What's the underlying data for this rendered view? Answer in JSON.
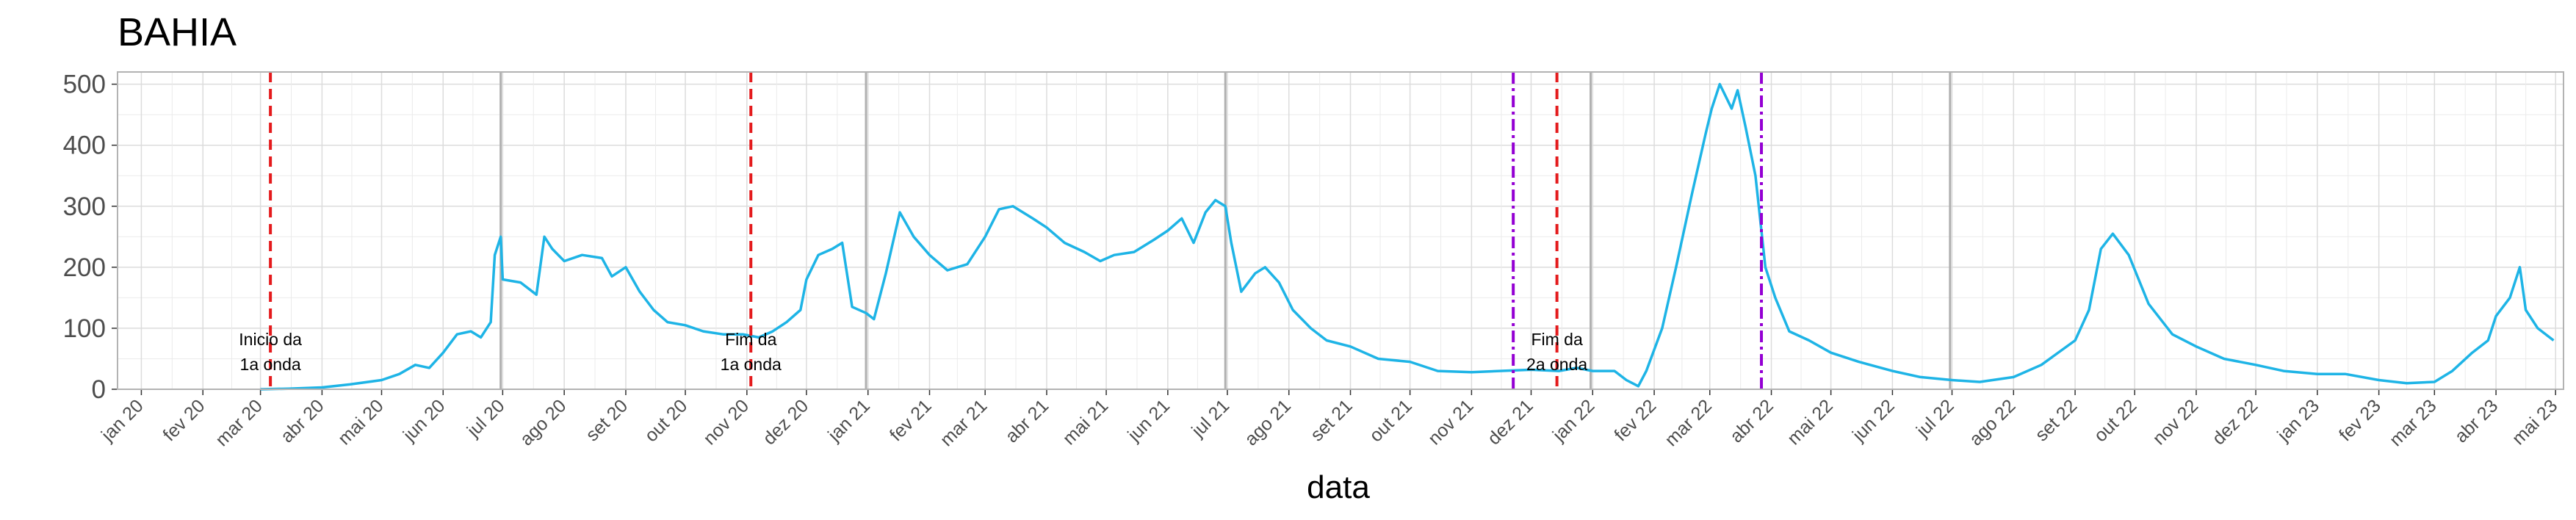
{
  "chart_data": {
    "type": "line",
    "title": "BAHIA",
    "xlabel": "data",
    "ylabel": "",
    "ylim": [
      0,
      520
    ],
    "yticks": [
      0,
      100,
      200,
      300,
      400,
      500
    ],
    "xlim": [
      "2019-12-20",
      "2023-05-05"
    ],
    "xticks": [
      {
        "date": "2020-01-01",
        "label": "jan 20"
      },
      {
        "date": "2020-02-01",
        "label": "fev 20"
      },
      {
        "date": "2020-03-01",
        "label": "mar 20"
      },
      {
        "date": "2020-04-01",
        "label": "abr 20"
      },
      {
        "date": "2020-05-01",
        "label": "mai 20"
      },
      {
        "date": "2020-06-01",
        "label": "jun 20"
      },
      {
        "date": "2020-07-01",
        "label": "jul 20"
      },
      {
        "date": "2020-08-01",
        "label": "ago 20"
      },
      {
        "date": "2020-09-01",
        "label": "set 20"
      },
      {
        "date": "2020-10-01",
        "label": "out 20"
      },
      {
        "date": "2020-11-01",
        "label": "nov 20"
      },
      {
        "date": "2020-12-01",
        "label": "dez 20"
      },
      {
        "date": "2021-01-01",
        "label": "jan 21"
      },
      {
        "date": "2021-02-01",
        "label": "fev 21"
      },
      {
        "date": "2021-03-01",
        "label": "mar 21"
      },
      {
        "date": "2021-04-01",
        "label": "abr 21"
      },
      {
        "date": "2021-05-01",
        "label": "mai 21"
      },
      {
        "date": "2021-06-01",
        "label": "jun 21"
      },
      {
        "date": "2021-07-01",
        "label": "jul 21"
      },
      {
        "date": "2021-08-01",
        "label": "ago 21"
      },
      {
        "date": "2021-09-01",
        "label": "set 21"
      },
      {
        "date": "2021-10-01",
        "label": "out 21"
      },
      {
        "date": "2021-11-01",
        "label": "nov 21"
      },
      {
        "date": "2021-12-01",
        "label": "dez 21"
      },
      {
        "date": "2022-01-01",
        "label": "jan 22"
      },
      {
        "date": "2022-02-01",
        "label": "fev 22"
      },
      {
        "date": "2022-03-01",
        "label": "mar 22"
      },
      {
        "date": "2022-04-01",
        "label": "abr 22"
      },
      {
        "date": "2022-05-01",
        "label": "mai 22"
      },
      {
        "date": "2022-06-01",
        "label": "jun 22"
      },
      {
        "date": "2022-07-01",
        "label": "jul 22"
      },
      {
        "date": "2022-08-01",
        "label": "ago 22"
      },
      {
        "date": "2022-09-01",
        "label": "set 22"
      },
      {
        "date": "2022-10-01",
        "label": "out 22"
      },
      {
        "date": "2022-11-01",
        "label": "nov 22"
      },
      {
        "date": "2022-12-01",
        "label": "dez 22"
      },
      {
        "date": "2023-01-01",
        "label": "jan 23"
      },
      {
        "date": "2023-02-01",
        "label": "fev 23"
      },
      {
        "date": "2023-03-01",
        "label": "mar 23"
      },
      {
        "date": "2023-04-01",
        "label": "abr 23"
      },
      {
        "date": "2023-05-01",
        "label": "mai 23"
      }
    ],
    "grid": true,
    "series": [
      {
        "color": "#1eb4e6",
        "points": [
          [
            "2020-03-01",
            0
          ],
          [
            "2020-03-15",
            1
          ],
          [
            "2020-04-01",
            3
          ],
          [
            "2020-04-15",
            8
          ],
          [
            "2020-05-01",
            15
          ],
          [
            "2020-05-10",
            25
          ],
          [
            "2020-05-18",
            40
          ],
          [
            "2020-05-25",
            35
          ],
          [
            "2020-06-01",
            60
          ],
          [
            "2020-06-08",
            90
          ],
          [
            "2020-06-15",
            95
          ],
          [
            "2020-06-20",
            85
          ],
          [
            "2020-06-25",
            110
          ],
          [
            "2020-06-27",
            220
          ],
          [
            "2020-06-30",
            250
          ],
          [
            "2020-07-01",
            180
          ],
          [
            "2020-07-10",
            175
          ],
          [
            "2020-07-18",
            155
          ],
          [
            "2020-07-22",
            250
          ],
          [
            "2020-07-26",
            230
          ],
          [
            "2020-08-01",
            210
          ],
          [
            "2020-08-10",
            220
          ],
          [
            "2020-08-20",
            215
          ],
          [
            "2020-08-25",
            185
          ],
          [
            "2020-09-01",
            200
          ],
          [
            "2020-09-08",
            160
          ],
          [
            "2020-09-15",
            130
          ],
          [
            "2020-09-22",
            110
          ],
          [
            "2020-10-01",
            105
          ],
          [
            "2020-10-10",
            95
          ],
          [
            "2020-10-20",
            90
          ],
          [
            "2020-10-30",
            90
          ],
          [
            "2020-11-07",
            85
          ],
          [
            "2020-11-14",
            95
          ],
          [
            "2020-11-21",
            110
          ],
          [
            "2020-11-28",
            130
          ],
          [
            "2020-12-01",
            180
          ],
          [
            "2020-12-07",
            220
          ],
          [
            "2020-12-14",
            230
          ],
          [
            "2020-12-19",
            240
          ],
          [
            "2020-12-24",
            135
          ],
          [
            "2020-12-31",
            125
          ],
          [
            "2021-01-04",
            115
          ],
          [
            "2021-01-10",
            190
          ],
          [
            "2021-01-17",
            290
          ],
          [
            "2021-01-24",
            250
          ],
          [
            "2021-02-01",
            220
          ],
          [
            "2021-02-10",
            195
          ],
          [
            "2021-02-20",
            205
          ],
          [
            "2021-03-01",
            250
          ],
          [
            "2021-03-08",
            295
          ],
          [
            "2021-03-15",
            300
          ],
          [
            "2021-03-25",
            280
          ],
          [
            "2021-04-01",
            265
          ],
          [
            "2021-04-10",
            240
          ],
          [
            "2021-04-20",
            225
          ],
          [
            "2021-04-28",
            210
          ],
          [
            "2021-05-05",
            220
          ],
          [
            "2021-05-15",
            225
          ],
          [
            "2021-05-25",
            245
          ],
          [
            "2021-06-01",
            260
          ],
          [
            "2021-06-08",
            280
          ],
          [
            "2021-06-14",
            240
          ],
          [
            "2021-06-20",
            290
          ],
          [
            "2021-06-25",
            310
          ],
          [
            "2021-06-30",
            300
          ],
          [
            "2021-07-03",
            240
          ],
          [
            "2021-07-08",
            160
          ],
          [
            "2021-07-15",
            190
          ],
          [
            "2021-07-20",
            200
          ],
          [
            "2021-07-27",
            175
          ],
          [
            "2021-08-03",
            130
          ],
          [
            "2021-08-12",
            100
          ],
          [
            "2021-08-20",
            80
          ],
          [
            "2021-09-01",
            70
          ],
          [
            "2021-09-15",
            50
          ],
          [
            "2021-10-01",
            45
          ],
          [
            "2021-10-15",
            30
          ],
          [
            "2021-11-01",
            28
          ],
          [
            "2021-11-15",
            30
          ],
          [
            "2021-12-01",
            32
          ],
          [
            "2021-12-15",
            30
          ],
          [
            "2021-12-24",
            35
          ],
          [
            "2022-01-01",
            30
          ],
          [
            "2022-01-12",
            30
          ],
          [
            "2022-01-18",
            15
          ],
          [
            "2022-01-24",
            5
          ],
          [
            "2022-01-28",
            30
          ],
          [
            "2022-02-05",
            100
          ],
          [
            "2022-02-12",
            200
          ],
          [
            "2022-02-20",
            320
          ],
          [
            "2022-02-27",
            420
          ],
          [
            "2022-03-02",
            460
          ],
          [
            "2022-03-06",
            500
          ],
          [
            "2022-03-12",
            460
          ],
          [
            "2022-03-15",
            490
          ],
          [
            "2022-03-19",
            430
          ],
          [
            "2022-03-24",
            350
          ],
          [
            "2022-03-29",
            200
          ],
          [
            "2022-04-03",
            150
          ],
          [
            "2022-04-10",
            95
          ],
          [
            "2022-04-20",
            80
          ],
          [
            "2022-05-01",
            60
          ],
          [
            "2022-05-15",
            45
          ],
          [
            "2022-06-01",
            30
          ],
          [
            "2022-06-15",
            20
          ],
          [
            "2022-07-01",
            15
          ],
          [
            "2022-07-15",
            12
          ],
          [
            "2022-08-01",
            20
          ],
          [
            "2022-08-15",
            40
          ],
          [
            "2022-09-01",
            80
          ],
          [
            "2022-09-08",
            130
          ],
          [
            "2022-09-14",
            230
          ],
          [
            "2022-09-20",
            255
          ],
          [
            "2022-09-28",
            220
          ],
          [
            "2022-10-08",
            140
          ],
          [
            "2022-10-20",
            90
          ],
          [
            "2022-11-01",
            70
          ],
          [
            "2022-11-15",
            50
          ],
          [
            "2022-12-01",
            40
          ],
          [
            "2022-12-15",
            30
          ],
          [
            "2023-01-01",
            25
          ],
          [
            "2023-01-15",
            25
          ],
          [
            "2023-02-01",
            15
          ],
          [
            "2023-02-15",
            10
          ],
          [
            "2023-03-01",
            12
          ],
          [
            "2023-03-10",
            30
          ],
          [
            "2023-03-20",
            60
          ],
          [
            "2023-03-28",
            80
          ],
          [
            "2023-04-01",
            120
          ],
          [
            "2023-04-08",
            150
          ],
          [
            "2023-04-13",
            200
          ],
          [
            "2023-04-16",
            130
          ],
          [
            "2023-04-22",
            100
          ],
          [
            "2023-04-30",
            80
          ]
        ]
      }
    ],
    "vlines": [
      {
        "date": "2020-03-06",
        "color": "#e41a1c",
        "style": "dashed"
      },
      {
        "date": "2020-11-03",
        "color": "#e41a1c",
        "style": "dashed"
      },
      {
        "date": "2021-11-22",
        "color": "#9400d3",
        "style": "dashdot"
      },
      {
        "date": "2021-12-14",
        "color": "#e41a1c",
        "style": "dashed"
      },
      {
        "date": "2022-03-27",
        "color": "#9400d3",
        "style": "dashdot"
      }
    ],
    "gray_lines": [
      "2020-06-30",
      "2020-12-31",
      "2021-06-30",
      "2021-12-31",
      "2022-06-30"
    ],
    "annotations": [
      {
        "date": "2020-03-06",
        "lines": [
          "Inicio da",
          "1a onda"
        ]
      },
      {
        "date": "2020-11-03",
        "lines": [
          "Fim da",
          "1a onda"
        ]
      },
      {
        "date": "2021-12-14",
        "lines": [
          "Fim da",
          "2a onda"
        ]
      }
    ]
  }
}
